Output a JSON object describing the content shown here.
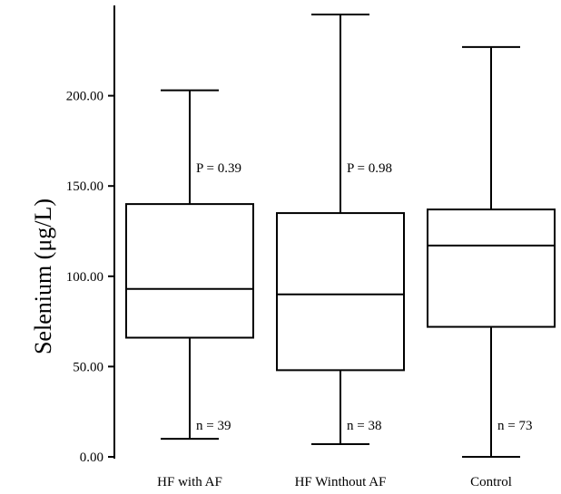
{
  "chart_data": {
    "type": "boxplot",
    "title": "",
    "xlabel": "",
    "ylabel": "Selenium (μg/L)",
    "ylim": [
      0,
      250
    ],
    "yticks": [
      0,
      50,
      100,
      150,
      200
    ],
    "ytick_labels": [
      "0.00",
      "50.00",
      "100.00",
      "150.00",
      "200.00"
    ],
    "categories": [
      "HF with AF",
      "HF Winthout AF",
      "Control"
    ],
    "boxes": [
      {
        "category": "HF with AF",
        "min": 10,
        "q1": 66,
        "median": 93,
        "q3": 140,
        "max": 203,
        "n_label": "n = 39",
        "p_label": "P = 0.39"
      },
      {
        "category": "HF Winthout AF",
        "min": 7,
        "q1": 48,
        "median": 90,
        "q3": 135,
        "max": 245,
        "n_label": "n = 38",
        "p_label": "P = 0.98"
      },
      {
        "category": "Control",
        "min": 0,
        "q1": 72,
        "median": 117,
        "q3": 137,
        "max": 227,
        "n_label": "n = 73",
        "p_label": ""
      }
    ],
    "grid": false,
    "legend": "none"
  }
}
